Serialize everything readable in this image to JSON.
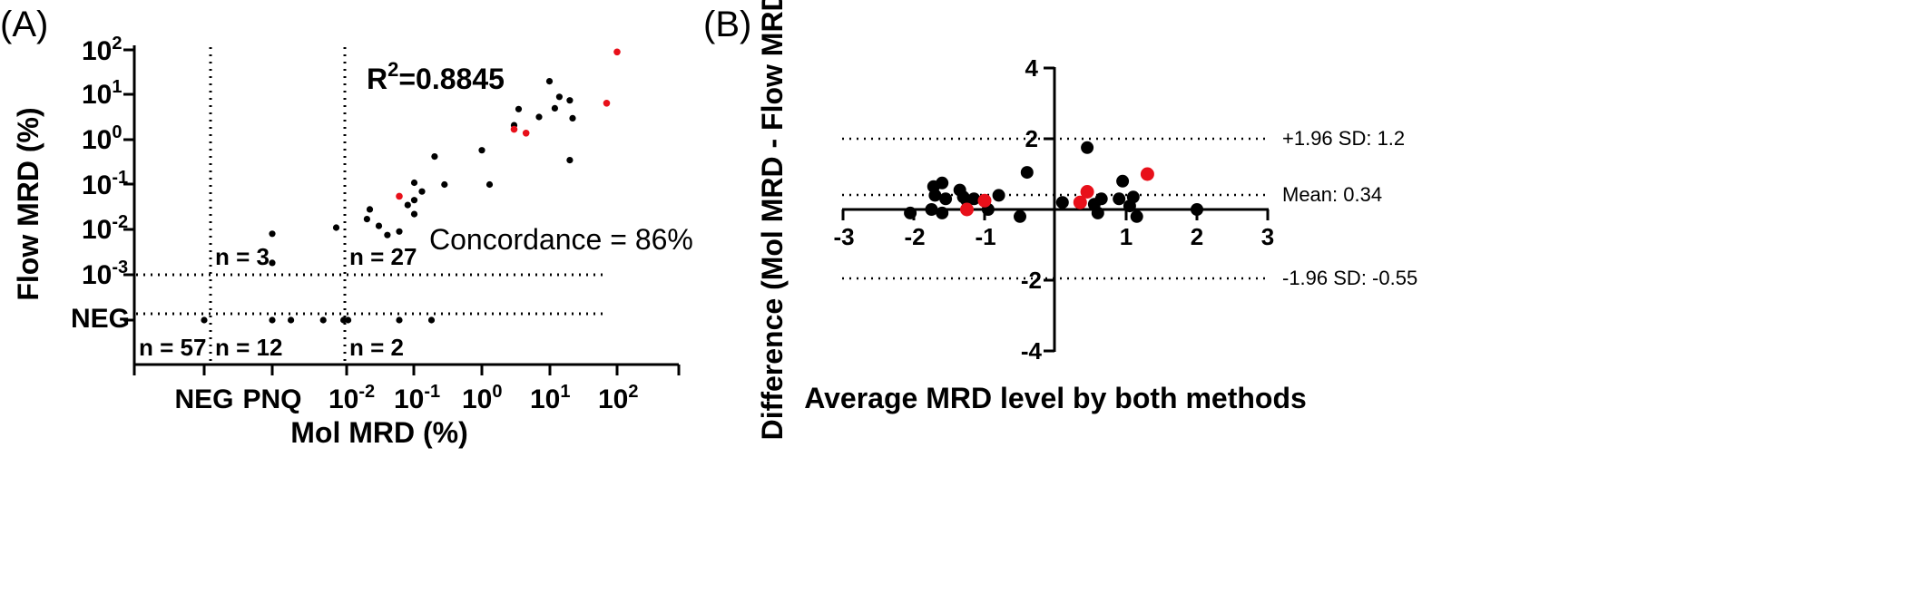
{
  "chart_data": [
    {
      "panel": "(A)",
      "type": "scatter",
      "xlabel": "Mol MRD  (%)",
      "ylabel": "Flow MRD  (%)",
      "xscale": "log10 with categorical NEG and PNQ positions",
      "yscale": "log10 with categorical NEG position",
      "x_tick_labels": [
        "NEG",
        "PNQ",
        "10-2",
        "10-1",
        "100",
        "101",
        "102"
      ],
      "y_tick_labels": [
        "NEG",
        "10-3",
        "10-2",
        "10-1",
        "100",
        "101",
        "102"
      ],
      "r2_label": "R",
      "r2_value": "=0.8845",
      "concordance": "Concordance = 86%",
      "region_counts": {
        "neg_neg": "n = 57",
        "neg_pnq_low": "n = 3",
        "pnq_neg": "n = 12",
        "pos_pos": "n = 27",
        "pos_neg": "n = 2"
      },
      "points_black": [
        {
          "x": "NEG",
          "y": "NEG"
        },
        {
          "x": "PNQ",
          "y": 0.008
        },
        {
          "x": "PNQ",
          "y": 0.0018
        },
        {
          "x": "PNQ",
          "y": "NEG"
        },
        {
          "x": 0.0015,
          "y": "NEG"
        },
        {
          "x": 0.0045,
          "y": "NEG"
        },
        {
          "x": 0.009,
          "y": "NEG"
        },
        {
          "x": 0.0105,
          "y": "NEG"
        },
        {
          "x": 0.06,
          "y": "NEG"
        },
        {
          "x": 0.18,
          "y": "NEG"
        },
        {
          "x": 0.007,
          "y": 0.011
        },
        {
          "x": 0.02,
          "y": 0.017
        },
        {
          "x": 0.022,
          "y": 0.028
        },
        {
          "x": 0.03,
          "y": 0.012
        },
        {
          "x": 0.04,
          "y": 0.0075
        },
        {
          "x": 0.06,
          "y": 0.009
        },
        {
          "x": 0.08,
          "y": 0.035
        },
        {
          "x": 0.1,
          "y": 0.022
        },
        {
          "x": 0.1,
          "y": 0.045
        },
        {
          "x": 0.1,
          "y": 0.11
        },
        {
          "x": 0.13,
          "y": 0.07
        },
        {
          "x": 0.2,
          "y": 0.42
        },
        {
          "x": 0.28,
          "y": 0.1
        },
        {
          "x": 1.0,
          "y": 0.58
        },
        {
          "x": 1.3,
          "y": 0.1
        },
        {
          "x": 3.0,
          "y": 2.1
        },
        {
          "x": 3.5,
          "y": 4.8
        },
        {
          "x": 7.0,
          "y": 3.2
        },
        {
          "x": 10.0,
          "y": 20.0
        },
        {
          "x": 12.0,
          "y": 5.0
        },
        {
          "x": 14.0,
          "y": 9.0
        },
        {
          "x": 20.0,
          "y": 7.5
        },
        {
          "x": 22.0,
          "y": 3.0
        },
        {
          "x": 20.0,
          "y": 0.35
        }
      ],
      "points_red": [
        {
          "x": 0.06,
          "y": 0.055
        },
        {
          "x": 3.0,
          "y": 1.7
        },
        {
          "x": 4.5,
          "y": 1.4
        },
        {
          "x": 70.0,
          "y": 6.5
        },
        {
          "x": 100.0,
          "y": 90.0
        }
      ],
      "colors": {
        "black": "#000000",
        "red": "#e8101a"
      },
      "threshold_lines": {
        "x": [
          "between NEG and PNQ",
          0.012
        ],
        "y": [
          0.001,
          "just above NEG"
        ]
      }
    },
    {
      "panel": "(B)",
      "type": "scatter",
      "xlabel": "Average MRD level by both methods",
      "ylabel": "Difference (Mol MRD - Flow MRD)",
      "xlim": [
        -3,
        3
      ],
      "ylim": [
        -4,
        4
      ],
      "x_ticks": [
        "-3",
        "-2",
        "-1",
        "0",
        "1",
        "2",
        "3"
      ],
      "y_ticks": [
        "4",
        "2",
        "-2",
        "-4"
      ],
      "hlines": [
        {
          "value": 1.2,
          "label": "+1.96 SD: 1.2"
        },
        {
          "value": 0.34,
          "label": "Mean: 0.34"
        },
        {
          "value": -0.55,
          "label": "-1.96 SD: -0.55"
        }
      ],
      "points_black": [
        {
          "x": -2.05,
          "y": -0.1
        },
        {
          "x": -1.75,
          "y": 0.0
        },
        {
          "x": -1.72,
          "y": 0.65
        },
        {
          "x": -1.7,
          "y": 0.4
        },
        {
          "x": -1.6,
          "y": -0.1
        },
        {
          "x": -1.6,
          "y": 0.75
        },
        {
          "x": -1.55,
          "y": 0.3
        },
        {
          "x": -1.35,
          "y": 0.55
        },
        {
          "x": -1.3,
          "y": 0.35
        },
        {
          "x": -1.25,
          "y": 0.25
        },
        {
          "x": -1.15,
          "y": 0.3
        },
        {
          "x": -0.95,
          "y": 0.0
        },
        {
          "x": -0.8,
          "y": 0.4
        },
        {
          "x": -0.5,
          "y": -0.2
        },
        {
          "x": -0.4,
          "y": 1.05
        },
        {
          "x": 0.1,
          "y": 0.2
        },
        {
          "x": 0.45,
          "y": 1.75
        },
        {
          "x": 0.55,
          "y": 0.15
        },
        {
          "x": 0.6,
          "y": -0.1
        },
        {
          "x": 0.65,
          "y": 0.3
        },
        {
          "x": 0.9,
          "y": 0.3
        },
        {
          "x": 0.95,
          "y": 0.8
        },
        {
          "x": 1.05,
          "y": 0.1
        },
        {
          "x": 1.1,
          "y": 0.35
        },
        {
          "x": 1.15,
          "y": -0.2
        },
        {
          "x": 2.0,
          "y": 0.0
        }
      ],
      "points_red": [
        {
          "x": -1.25,
          "y": 0.0
        },
        {
          "x": -1.0,
          "y": 0.25
        },
        {
          "x": 0.35,
          "y": 0.2
        },
        {
          "x": 0.45,
          "y": 0.5
        },
        {
          "x": 1.3,
          "y": 1.0
        }
      ],
      "colors": {
        "black": "#000000",
        "red": "#e8101a"
      }
    }
  ]
}
